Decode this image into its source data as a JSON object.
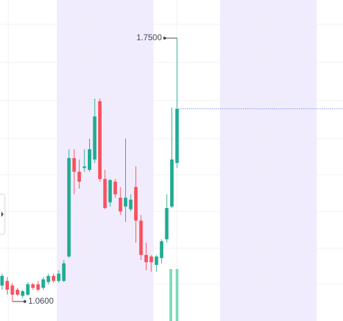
{
  "chart_data": {
    "type": "candlestick",
    "ylim": [
      1.009,
      1.85
    ],
    "up_color": "#22ab94",
    "down_color": "#f7525f",
    "last_price_color": "#2962ff",
    "open": [
      1.102,
      1.114,
      1.102,
      1.091,
      1.075,
      1.078,
      1.105,
      1.105,
      1.096,
      1.111,
      1.127,
      1.114,
      1.114,
      1.178,
      1.436,
      1.4,
      1.41,
      1.405,
      1.432,
      1.585,
      1.381,
      1.32,
      1.374,
      1.332,
      1.309,
      1.302,
      1.36,
      1.272,
      1.182,
      1.178,
      1.156,
      1.174,
      1.223,
      1.309,
      1.423
    ],
    "high": [
      1.133,
      1.124,
      1.109,
      1.096,
      1.091,
      1.111,
      1.109,
      1.114,
      1.124,
      1.133,
      1.133,
      1.142,
      1.169,
      1.459,
      1.459,
      1.432,
      1.459,
      1.487,
      1.592,
      1.592,
      1.405,
      1.381,
      1.381,
      1.36,
      1.487,
      1.341,
      1.414,
      1.287,
      1.214,
      1.182,
      1.182,
      1.223,
      1.341,
      1.568,
      1.75
    ],
    "low": [
      1.091,
      1.078,
      1.06,
      1.075,
      1.069,
      1.075,
      1.091,
      1.087,
      1.091,
      1.105,
      1.109,
      1.109,
      1.111,
      1.174,
      1.341,
      1.356,
      1.4,
      1.4,
      1.423,
      1.374,
      1.302,
      1.309,
      1.332,
      1.287,
      1.269,
      1.296,
      1.214,
      1.169,
      1.142,
      1.138,
      1.138,
      1.16,
      1.214,
      1.305,
      1.41
    ],
    "close": [
      1.127,
      1.091,
      1.078,
      1.078,
      1.087,
      1.105,
      1.096,
      1.091,
      1.118,
      1.127,
      1.114,
      1.133,
      1.16,
      1.436,
      1.4,
      1.374,
      1.414,
      1.459,
      1.545,
      1.381,
      1.305,
      1.378,
      1.341,
      1.296,
      1.332,
      1.327,
      1.272,
      1.182,
      1.163,
      1.163,
      1.178,
      1.218,
      1.305,
      1.432,
      1.565
    ],
    "annotations": [
      {
        "value": 1.75,
        "label": "1.7500"
      },
      {
        "value": 1.06,
        "label": "1.0600"
      }
    ]
  }
}
